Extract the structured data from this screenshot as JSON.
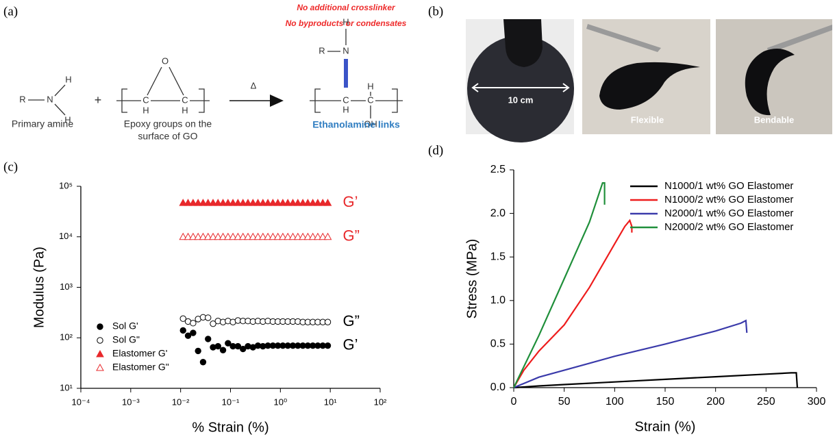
{
  "panel_a": {
    "label": "(a)",
    "notes": [
      "No additional crosslinker",
      "No byproducts  or condensates"
    ],
    "amine": {
      "atoms": [
        "R",
        "N",
        "H",
        "H"
      ],
      "caption": "Primary amine"
    },
    "plus": "+",
    "epoxy": {
      "atoms": [
        "O",
        "C",
        "C",
        "H",
        "H"
      ],
      "caption": [
        "Epoxy groups on the",
        "surface of GO"
      ]
    },
    "heat": "Δ",
    "product": {
      "atoms": [
        "H",
        "R",
        "N",
        "C",
        "C",
        "H",
        "H",
        "OH"
      ],
      "caption": "Ethanolamine links"
    }
  },
  "panel_b": {
    "label": "(b)",
    "photo_labels": [
      "10 cm",
      "Flexible",
      "Bendable"
    ]
  },
  "chart_data": [
    {
      "type": "scatter",
      "panel_label": "(c)",
      "xlabel": "% Strain (%)",
      "ylabel": "Modulus (Pa)",
      "log_x": true,
      "log_y": true,
      "legend": "lower left",
      "xlim": [
        0.0001,
        100
      ],
      "ylim": [
        10,
        100000
      ],
      "xticks": [
        {
          "value": 0.0001,
          "label": "10⁻⁴"
        },
        {
          "value": 0.001,
          "label": "10⁻³"
        },
        {
          "value": 0.01,
          "label": "10⁻²"
        },
        {
          "value": 0.1,
          "label": "10⁻¹"
        },
        {
          "value": 1,
          "label": "10⁰"
        },
        {
          "value": 10,
          "label": "10¹"
        },
        {
          "value": 100,
          "label": "10²"
        }
      ],
      "yticks": [
        {
          "value": 10,
          "label": "10¹"
        },
        {
          "value": 100,
          "label": "10²"
        },
        {
          "value": 1000,
          "label": "10³"
        },
        {
          "value": 10000,
          "label": "10⁴"
        },
        {
          "value": 100000,
          "label": "10⁵"
        }
      ],
      "x": [
        0.0112,
        0.0141,
        0.0178,
        0.0224,
        0.0282,
        0.0355,
        0.0447,
        0.0562,
        0.0708,
        0.0891,
        0.112,
        0.141,
        0.178,
        0.224,
        0.282,
        0.355,
        0.447,
        0.562,
        0.708,
        0.891,
        1.12,
        1.41,
        1.78,
        2.24,
        2.82,
        3.55,
        4.47,
        5.62,
        7.08,
        8.91
      ],
      "series": [
        {
          "name": "Sol G'",
          "color": "#000000",
          "marker": "circle",
          "filled": true,
          "end_label": "G’",
          "values": [
            140,
            110,
            125,
            55,
            33,
            95,
            65,
            68,
            57,
            78,
            68,
            68,
            60,
            68,
            65,
            70,
            68,
            70,
            70,
            70,
            70,
            70,
            70,
            70,
            70,
            70,
            70,
            70,
            70,
            70
          ]
        },
        {
          "name": "Sol G\"",
          "color": "#000000",
          "marker": "circle",
          "filled": false,
          "end_label": "G”",
          "values": [
            240,
            210,
            195,
            235,
            255,
            250,
            190,
            215,
            205,
            215,
            205,
            220,
            215,
            215,
            210,
            215,
            210,
            215,
            210,
            210,
            210,
            210,
            210,
            210,
            205,
            205,
            205,
            205,
            205,
            205
          ]
        },
        {
          "name": "Elastomer G'",
          "color": "#e8282b",
          "marker": "triangle",
          "filled": true,
          "end_label": "G’",
          "values": [
            47000,
            47000,
            47000,
            47000,
            47000,
            47000,
            47000,
            47000,
            47000,
            47000,
            47000,
            47000,
            47000,
            47000,
            47000,
            47000,
            47000,
            47000,
            47000,
            47000,
            47000,
            47000,
            47000,
            47000,
            47000,
            47000,
            47000,
            47000,
            47000,
            47000
          ]
        },
        {
          "name": "Elastomer G\"",
          "color": "#e8282b",
          "marker": "triangle",
          "filled": false,
          "end_label": "G”",
          "values": [
            10000,
            10000,
            10000,
            10000,
            10000,
            10000,
            10000,
            10000,
            10000,
            10000,
            10000,
            10000,
            10000,
            10000,
            10000,
            10000,
            10000,
            10000,
            10000,
            10000,
            10000,
            10000,
            10000,
            10000,
            10000,
            10000,
            10000,
            10000,
            10000,
            10000
          ]
        }
      ]
    },
    {
      "type": "line",
      "panel_label": "(d)",
      "xlabel": "Strain (%)",
      "ylabel": "Stress (MPa)",
      "legend": "upper right",
      "xlim": [
        0,
        300
      ],
      "ylim": [
        0,
        2.5
      ],
      "xticks": [
        0,
        50,
        100,
        150,
        200,
        250,
        300
      ],
      "yticks": [
        {
          "value": 0,
          "label": "0.0"
        },
        0.5,
        {
          "value": 1,
          "label": "1.0"
        },
        1.5,
        {
          "value": 2,
          "label": "2.0"
        },
        2.5
      ],
      "series": [
        {
          "name": "N1000/1 wt% GO Elastomer",
          "color": "#000000",
          "x": [
            0,
            25,
            50,
            100,
            150,
            200,
            250,
            275,
            280,
            281
          ],
          "values": [
            0,
            0.02,
            0.035,
            0.065,
            0.095,
            0.125,
            0.155,
            0.17,
            0.17,
            0
          ]
        },
        {
          "name": "N1000/2 wt% GO Elastomer",
          "color": "#ee1c1c",
          "x": [
            0,
            10,
            25,
            50,
            75,
            100,
            110,
            115,
            117,
            117
          ],
          "values": [
            0,
            0.2,
            0.42,
            0.72,
            1.15,
            1.65,
            1.85,
            1.92,
            1.85,
            1.78
          ]
        },
        {
          "name": "N2000/1 wt% GO Elastomer",
          "color": "#3a3aaa",
          "x": [
            0,
            25,
            50,
            75,
            100,
            150,
            200,
            225,
            230,
            231
          ],
          "values": [
            0,
            0.12,
            0.2,
            0.28,
            0.36,
            0.5,
            0.65,
            0.74,
            0.77,
            0.63
          ]
        },
        {
          "name": "N2000/2 wt% GO Elastomer",
          "color": "#1f8f3a",
          "x": [
            0,
            25,
            50,
            75,
            88,
            90,
            90
          ],
          "values": [
            0,
            0.6,
            1.25,
            1.9,
            2.35,
            2.35,
            2.1
          ]
        }
      ]
    }
  ]
}
